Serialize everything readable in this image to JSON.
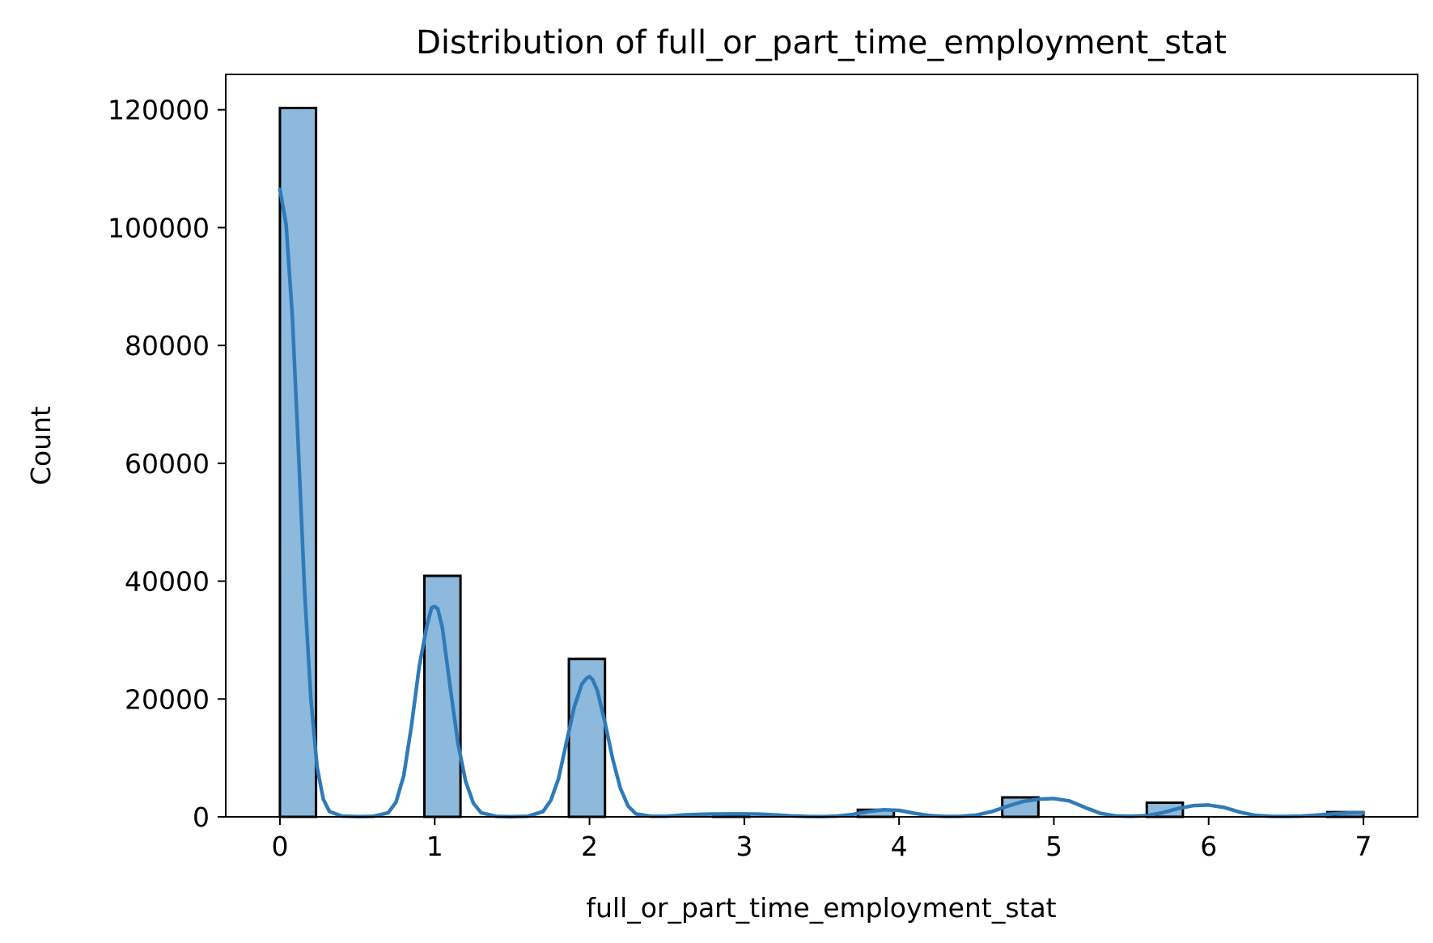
{
  "chart_data": {
    "type": "bar",
    "title": "Distribution of full_or_part_time_employment_stat",
    "xlabel": "full_or_part_time_employment_stat",
    "ylabel": "Count",
    "xlim": [
      -0.35,
      7.35
    ],
    "ylim": [
      0,
      126000
    ],
    "xticks": [
      0,
      1,
      2,
      3,
      4,
      5,
      6,
      7
    ],
    "yticks": [
      0,
      20000,
      40000,
      60000,
      80000,
      100000,
      120000
    ],
    "xtick_labels": [
      "0",
      "1",
      "2",
      "3",
      "4",
      "5",
      "6",
      "7"
    ],
    "ytick_labels": [
      "0",
      "20000",
      "40000",
      "60000",
      "80000",
      "100000",
      "120000"
    ],
    "grid": false,
    "legend": false,
    "bin_width": 0.2333,
    "bars": [
      {
        "x0": 0.0,
        "count": 120300
      },
      {
        "x0": 0.9333,
        "count": 40900
      },
      {
        "x0": 1.8667,
        "count": 26800
      },
      {
        "x0": 2.8,
        "count": 500
      },
      {
        "x0": 3.7333,
        "count": 1200
      },
      {
        "x0": 4.6667,
        "count": 3300
      },
      {
        "x0": 5.6,
        "count": 2400
      },
      {
        "x0": 6.7667,
        "count": 800
      }
    ],
    "kde": {
      "x": [
        0.0,
        0.04,
        0.08,
        0.12,
        0.16,
        0.2,
        0.24,
        0.28,
        0.32,
        0.4,
        0.5,
        0.6,
        0.7,
        0.75,
        0.8,
        0.85,
        0.9,
        0.95,
        0.98,
        1.0,
        1.02,
        1.05,
        1.1,
        1.15,
        1.2,
        1.25,
        1.3,
        1.4,
        1.5,
        1.6,
        1.7,
        1.75,
        1.8,
        1.85,
        1.9,
        1.95,
        1.98,
        2.0,
        2.02,
        2.05,
        2.1,
        2.15,
        2.2,
        2.25,
        2.3,
        2.4,
        2.5,
        2.6,
        2.7,
        2.8,
        2.9,
        3.0,
        3.1,
        3.2,
        3.3,
        3.4,
        3.5,
        3.6,
        3.7,
        3.8,
        3.9,
        4.0,
        4.1,
        4.2,
        4.3,
        4.4,
        4.5,
        4.6,
        4.7,
        4.8,
        4.9,
        5.0,
        5.1,
        5.2,
        5.3,
        5.4,
        5.5,
        5.6,
        5.7,
        5.8,
        5.9,
        6.0,
        6.1,
        6.2,
        6.3,
        6.4,
        6.5,
        6.6,
        6.7,
        6.8,
        6.9,
        7.0
      ],
      "y": [
        106500,
        100500,
        85000,
        62000,
        38000,
        20000,
        8500,
        3000,
        900,
        120,
        30,
        60,
        700,
        2500,
        7000,
        15500,
        25500,
        32500,
        35500,
        35700,
        35300,
        32000,
        22000,
        12500,
        6000,
        2300,
        700,
        60,
        20,
        80,
        900,
        2800,
        6500,
        12500,
        18500,
        22500,
        23500,
        23800,
        23300,
        21500,
        16000,
        9800,
        4800,
        1800,
        500,
        80,
        100,
        300,
        420,
        480,
        500,
        500,
        460,
        320,
        150,
        60,
        40,
        120,
        400,
        900,
        1200,
        1100,
        600,
        200,
        60,
        80,
        300,
        900,
        1800,
        2600,
        3000,
        3100,
        2700,
        1600,
        600,
        150,
        80,
        200,
        700,
        1400,
        1900,
        2000,
        1600,
        800,
        250,
        80,
        60,
        120,
        300,
        500,
        650,
        700
      ]
    },
    "colors": {
      "bar_fill": "#8cb9dc",
      "bar_edge": "#000000",
      "kde_line": "#2f7ab8"
    }
  }
}
